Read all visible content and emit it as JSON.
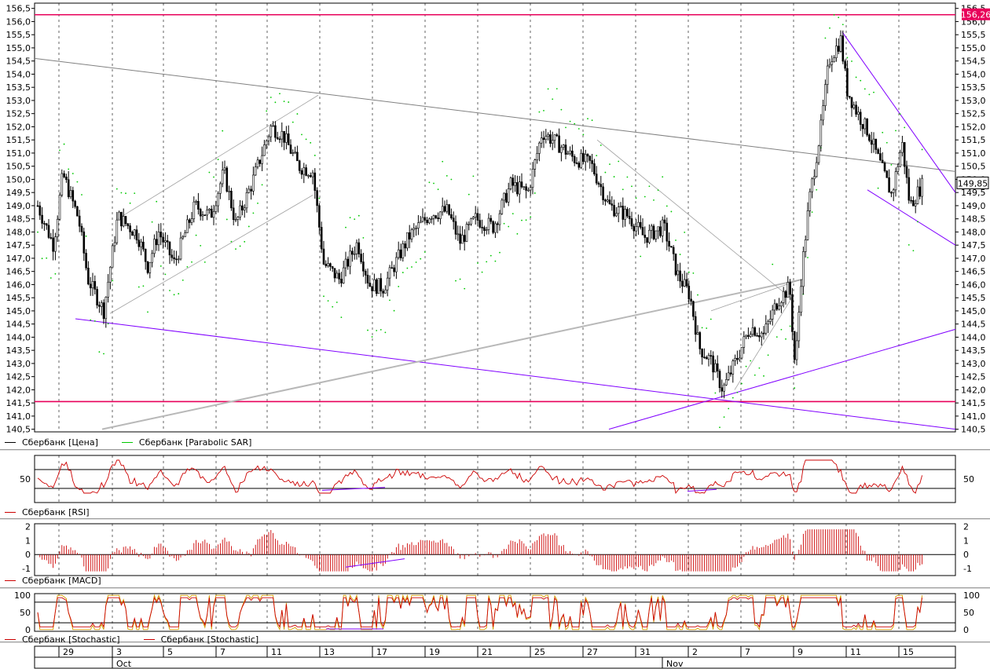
{
  "chart_data": [
    {
      "type": "candlestick",
      "title": "",
      "series": [
        {
          "name": "Сбербанк [Цена]",
          "color": "#000000"
        },
        {
          "name": "Сбербанк [Parabolic SAR]",
          "color": "#00c800"
        }
      ],
      "y_ticks": [
        "140,5",
        "141,0",
        "141,5",
        "142,0",
        "142,5",
        "143,0",
        "143,5",
        "144,0",
        "144,5",
        "145,0",
        "145,5",
        "146,0",
        "146,5",
        "147,0",
        "147,5",
        "148,0",
        "148,5",
        "149,0",
        "149,5",
        "150,0",
        "150,5",
        "151,0",
        "151,5",
        "152,0",
        "152,5",
        "153,0",
        "153,5",
        "154,0",
        "154,5",
        "155,0",
        "155,5",
        "156,0",
        "156,5"
      ],
      "ylim": [
        140.4,
        156.7
      ],
      "last_price_label": "149,85",
      "last_price": 149.85,
      "level_label": "156,26",
      "levels": [
        156.26,
        141.55
      ],
      "level_color": "#e8005a",
      "trendline_color": "#8000ff",
      "channel_color": "#a0a0a0",
      "grid": true,
      "legend_position": "bottom-left"
    },
    {
      "type": "line",
      "series": [
        {
          "name": "Сбербанк [RSI]",
          "color": "#cc0000"
        }
      ],
      "y_ticks": [
        "50"
      ],
      "ylim": [
        0,
        100
      ]
    },
    {
      "type": "bar",
      "series": [
        {
          "name": "Сбербанк [MACD]",
          "color": "#cc0000"
        }
      ],
      "y_ticks": [
        "2",
        "1",
        "0",
        "-1"
      ],
      "ylim": [
        -1.5,
        2.2
      ]
    },
    {
      "type": "line",
      "series": [
        {
          "name": "Сбербанк [Stochastic]",
          "color": "#cc0000"
        },
        {
          "name": "Сбербанк [Stochastic]",
          "color": "#cc0000"
        }
      ],
      "y_ticks": [
        "100",
        "50",
        "0"
      ],
      "ylim": [
        -5,
        105
      ]
    }
  ],
  "x_axis": {
    "day_labels": [
      "29",
      "3",
      "5",
      "7",
      "11",
      "13",
      "17",
      "19",
      "21",
      "25",
      "27",
      "31",
      "2",
      "7",
      "9",
      "11",
      "15"
    ],
    "month_labels": [
      "Oct",
      "Nov"
    ]
  }
}
